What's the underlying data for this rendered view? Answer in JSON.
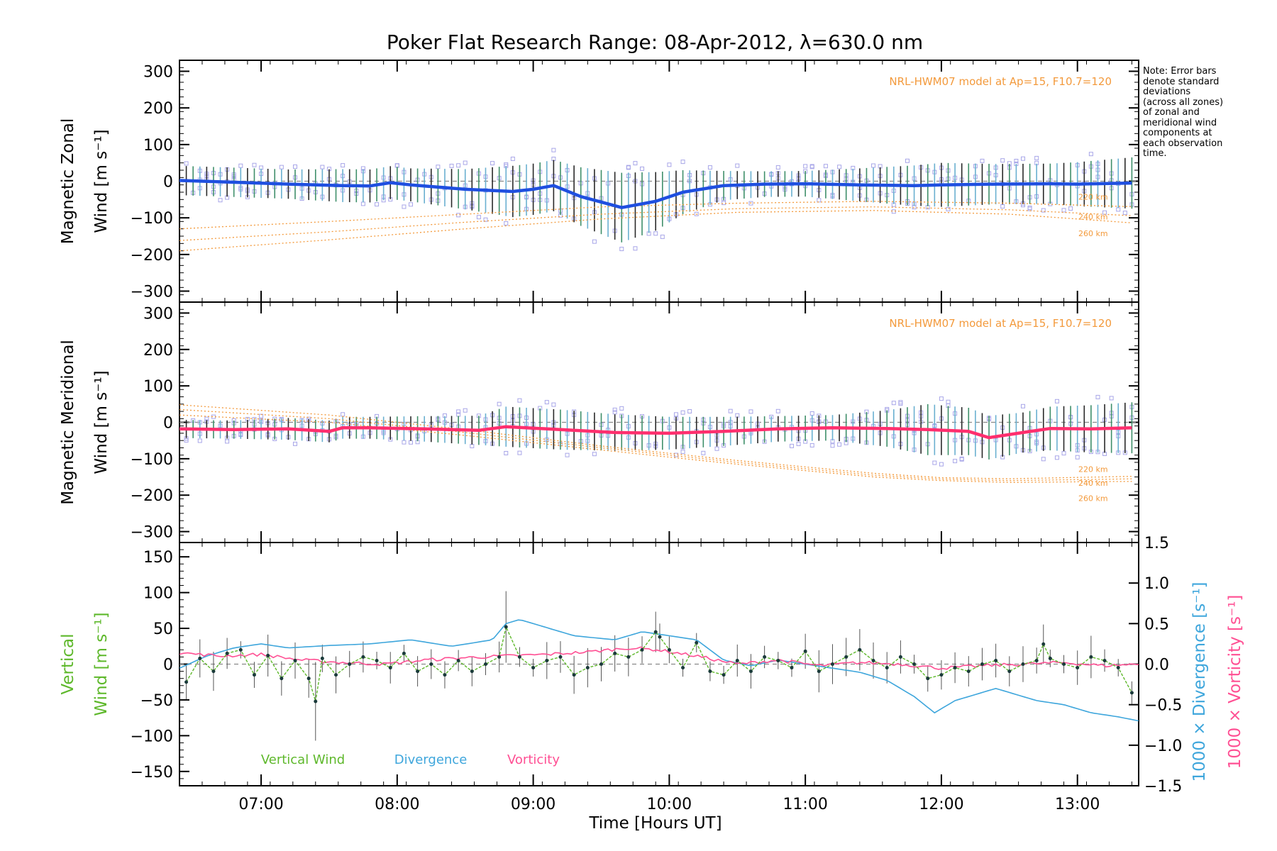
{
  "title": "Poker Flat Research Range: 08-Apr-2012, λ=630.0 nm",
  "note_lines": [
    "Note: Error bars",
    "denote standard",
    "deviations",
    "(across all zones)",
    "of zonal and",
    "meridional wind",
    "components at",
    "each observation",
    "time."
  ],
  "x_axis": {
    "label": "Time [Hours UT]",
    "range_hours": [
      6.4,
      13.45
    ],
    "ticks": [
      7,
      8,
      9,
      10,
      11,
      12,
      13
    ],
    "tick_labels": [
      "07:00",
      "08:00",
      "09:00",
      "10:00",
      "11:00",
      "12:00",
      "13:00"
    ]
  },
  "colors": {
    "zonal": "#1f4fe0",
    "meridional": "#ff2f6e",
    "model": "#f39a3c",
    "scatter": "#a8a6e8",
    "vertical": "#5eb82b",
    "divergence": "#3ea6dc",
    "vorticity": "#ff4f93",
    "errorbar": "#555555"
  },
  "chart_data": [
    {
      "type": "line",
      "panel": "zonal",
      "ylabel_line1": "Magnetic Zonal",
      "ylabel_line2": "Wind [m s⁻¹]",
      "ylim": [
        -330,
        330
      ],
      "yticks": [
        -300,
        -200,
        -100,
        0,
        100,
        200,
        300
      ],
      "model_text": "NRL-HWM07 model at Ap=15, F10.7=120",
      "model_altitude_labels": [
        "220 km",
        "240 km",
        "260 km"
      ],
      "series": [
        {
          "name": "Magnetic Zonal Wind",
          "x": [
            6.4,
            6.8,
            7.2,
            7.6,
            7.8,
            7.95,
            8.1,
            8.5,
            8.85,
            9.0,
            9.15,
            9.35,
            9.65,
            9.9,
            10.1,
            10.4,
            10.7,
            11.0,
            11.4,
            11.8,
            12.0,
            12.4,
            12.8,
            13.0,
            13.4
          ],
          "values": [
            2,
            -3,
            -8,
            -12,
            -13,
            -4,
            -10,
            -22,
            -28,
            -22,
            -12,
            -42,
            -72,
            -55,
            -30,
            -12,
            -8,
            -7,
            -10,
            -12,
            -10,
            -8,
            -7,
            -8,
            -5
          ],
          "std": [
            40,
            40,
            40,
            45,
            45,
            45,
            45,
            55,
            70,
            70,
            70,
            80,
            95,
            80,
            60,
            40,
            35,
            35,
            45,
            55,
            60,
            55,
            55,
            60,
            70
          ]
        },
        {
          "name": "220 km",
          "x": [
            6.4,
            7.5,
            8.5,
            9.5,
            10.5,
            11.5,
            12.5,
            13.45
          ],
          "values": [
            -130,
            -110,
            -90,
            -70,
            -60,
            -55,
            -60,
            -70
          ]
        },
        {
          "name": "240 km",
          "x": [
            6.4,
            7.5,
            8.5,
            9.5,
            10.5,
            11.5,
            12.5,
            13.45
          ],
          "values": [
            -162,
            -138,
            -112,
            -90,
            -75,
            -70,
            -78,
            -95
          ]
        },
        {
          "name": "260 km",
          "x": [
            6.4,
            7.5,
            8.5,
            9.5,
            10.5,
            11.5,
            12.5,
            13.45
          ],
          "values": [
            -190,
            -160,
            -130,
            -103,
            -85,
            -80,
            -90,
            -115
          ]
        }
      ]
    },
    {
      "type": "line",
      "panel": "meridional",
      "ylabel_line1": "Magnetic Meridional",
      "ylabel_line2": "Wind [m s⁻¹]",
      "ylim": [
        -330,
        330
      ],
      "yticks": [
        -300,
        -200,
        -100,
        0,
        100,
        200,
        300
      ],
      "model_text": "NRL-HWM07 model at Ap=15, F10.7=120",
      "model_altitude_labels": [
        "220 km",
        "240 km",
        "260 km"
      ],
      "series": [
        {
          "name": "Magnetic Meridional Wind",
          "x": [
            6.4,
            6.8,
            7.2,
            7.5,
            7.6,
            7.8,
            8.2,
            8.6,
            8.8,
            9.2,
            9.6,
            10.0,
            10.4,
            10.8,
            11.2,
            11.6,
            11.9,
            12.2,
            12.35,
            12.6,
            12.8,
            13.1,
            13.4
          ],
          "values": [
            -18,
            -20,
            -18,
            -25,
            -15,
            -15,
            -18,
            -22,
            -12,
            -20,
            -28,
            -30,
            -25,
            -18,
            -15,
            -17,
            -20,
            -25,
            -42,
            -28,
            -17,
            -18,
            -15
          ],
          "std": [
            25,
            25,
            30,
            30,
            30,
            30,
            35,
            40,
            55,
            55,
            50,
            45,
            40,
            35,
            35,
            50,
            70,
            65,
            60,
            55,
            60,
            65,
            70
          ]
        },
        {
          "name": "220 km",
          "x": [
            6.4,
            7.5,
            8.5,
            9.5,
            10.5,
            11.5,
            12.0,
            12.5,
            13.45
          ],
          "values": [
            48,
            20,
            -20,
            -65,
            -105,
            -140,
            -152,
            -155,
            -148
          ]
        },
        {
          "name": "240 km",
          "x": [
            6.4,
            7.5,
            8.5,
            9.5,
            10.5,
            11.5,
            12.0,
            12.5,
            13.45
          ],
          "values": [
            35,
            10,
            -28,
            -70,
            -110,
            -145,
            -156,
            -160,
            -155
          ]
        },
        {
          "name": "260 km",
          "x": [
            6.4,
            7.5,
            8.5,
            9.5,
            10.5,
            11.5,
            12.0,
            12.5,
            13.45
          ],
          "values": [
            20,
            0,
            -36,
            -76,
            -115,
            -150,
            -160,
            -165,
            -162
          ]
        }
      ]
    },
    {
      "type": "line",
      "panel": "vertical",
      "ylabel_line1": "Vertical",
      "ylabel_line2": "Wind [m s⁻¹]",
      "ylim": [
        -170,
        170
      ],
      "yticks": [
        -150,
        -100,
        -50,
        0,
        50,
        100,
        150
      ],
      "y2label_divergence": "1000 × Divergence [s⁻¹]",
      "y2label_vorticity": "1000 × Vorticity [s⁻¹]",
      "y2lim": [
        -1.5,
        1.5
      ],
      "y2ticks": [
        -1.5,
        -1.0,
        -0.5,
        0.0,
        0.5,
        1.0,
        1.5
      ],
      "y2tick_labels": [
        "−1.5",
        "−1.0",
        "−0.5",
        "0.0",
        "0.5",
        "1.0",
        "1.5"
      ],
      "legend": [
        "Vertical Wind",
        "Divergence",
        "Vorticity"
      ],
      "series": [
        {
          "name": "Vertical Wind",
          "x": [
            6.45,
            6.55,
            6.65,
            6.75,
            6.85,
            6.95,
            7.05,
            7.15,
            7.25,
            7.35,
            7.4,
            7.45,
            7.55,
            7.65,
            7.75,
            7.85,
            7.95,
            8.05,
            8.15,
            8.25,
            8.35,
            8.45,
            8.55,
            8.65,
            8.75,
            8.8,
            8.9,
            9.0,
            9.1,
            9.2,
            9.3,
            9.4,
            9.5,
            9.6,
            9.7,
            9.8,
            9.9,
            9.93,
            10.0,
            10.1,
            10.2,
            10.3,
            10.4,
            10.5,
            10.6,
            10.7,
            10.8,
            10.9,
            11.0,
            11.1,
            11.2,
            11.3,
            11.4,
            11.5,
            11.6,
            11.7,
            11.8,
            11.9,
            12.0,
            12.1,
            12.2,
            12.3,
            12.4,
            12.5,
            12.6,
            12.7,
            12.75,
            12.8,
            12.9,
            13.0,
            13.1,
            13.2,
            13.3,
            13.4
          ],
          "values": [
            -25,
            8,
            -10,
            15,
            20,
            -15,
            12,
            -20,
            5,
            -20,
            -52,
            8,
            -15,
            0,
            10,
            5,
            -5,
            15,
            -10,
            0,
            -15,
            5,
            -10,
            0,
            10,
            52,
            10,
            -5,
            5,
            10,
            -15,
            -5,
            0,
            15,
            10,
            20,
            45,
            38,
            20,
            -5,
            30,
            -10,
            -15,
            5,
            -10,
            10,
            5,
            -5,
            18,
            -10,
            0,
            10,
            20,
            5,
            -5,
            10,
            0,
            -20,
            -15,
            -5,
            -10,
            0,
            5,
            -10,
            0,
            5,
            28,
            8,
            0,
            -5,
            10,
            5,
            -5,
            -40
          ]
        },
        {
          "name": "Divergence",
          "x": [
            6.4,
            6.6,
            6.8,
            7.0,
            7.2,
            7.5,
            7.8,
            8.1,
            8.4,
            8.7,
            8.8,
            8.9,
            9.1,
            9.3,
            9.6,
            9.8,
            10.0,
            10.2,
            10.4,
            10.6,
            10.8,
            11.0,
            11.2,
            11.4,
            11.6,
            11.8,
            11.95,
            12.1,
            12.3,
            12.4,
            12.5,
            12.7,
            12.9,
            13.1,
            13.3,
            13.45
          ],
          "values": [
            -0.05,
            0.1,
            0.2,
            0.25,
            0.2,
            0.23,
            0.25,
            0.3,
            0.22,
            0.3,
            0.5,
            0.55,
            0.45,
            0.35,
            0.3,
            0.4,
            0.35,
            0.3,
            0.05,
            -0.02,
            0.05,
            0.0,
            -0.05,
            -0.1,
            -0.2,
            -0.4,
            -0.6,
            -0.45,
            -0.35,
            -0.3,
            -0.35,
            -0.45,
            -0.5,
            -0.6,
            -0.65,
            -0.7
          ]
        },
        {
          "name": "Vorticity",
          "x": [
            6.4,
            6.7,
            7.0,
            7.3,
            7.6,
            7.9,
            8.2,
            8.5,
            8.8,
            9.1,
            9.4,
            9.7,
            9.9,
            10.2,
            10.5,
            10.8,
            11.1,
            11.4,
            11.7,
            12.0,
            12.3,
            12.6,
            12.9,
            13.2,
            13.45
          ],
          "values": [
            0.14,
            0.1,
            0.12,
            0.05,
            0.02,
            0.0,
            0.05,
            0.08,
            0.1,
            0.12,
            0.15,
            0.2,
            0.18,
            0.1,
            0.0,
            0.05,
            -0.02,
            0.02,
            0.0,
            -0.05,
            -0.02,
            0.0,
            0.02,
            -0.02,
            0.0
          ]
        }
      ]
    }
  ]
}
